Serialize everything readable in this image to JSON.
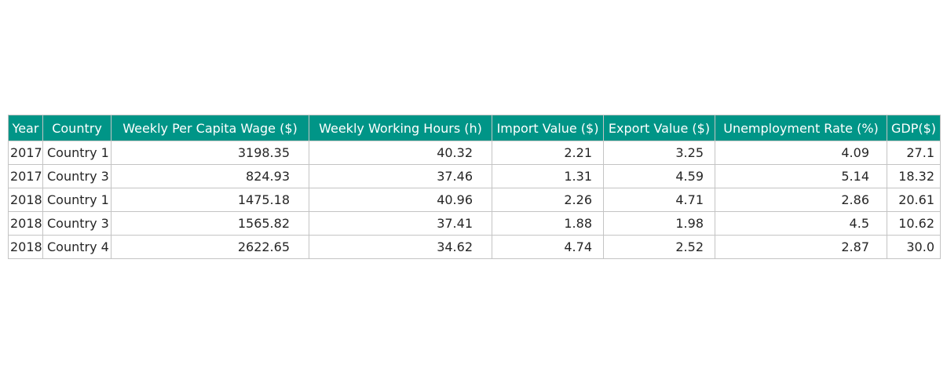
{
  "chart_data": {
    "type": "table",
    "columns": [
      "Year",
      "Country",
      "Weekly Per Capita Wage ($)",
      "Weekly Working Hours (h)",
      "Import Value ($)",
      "Export Value ($)",
      "Unemployment Rate (%)",
      "GDP($)"
    ],
    "rows": [
      [
        "2017",
        "Country 1",
        "3198.35",
        "40.32",
        "2.21",
        "3.25",
        "4.09",
        "27.1"
      ],
      [
        "2017",
        "Country 3",
        "824.93",
        "37.46",
        "1.31",
        "4.59",
        "5.14",
        "18.32"
      ],
      [
        "2018",
        "Country 1",
        "1475.18",
        "40.96",
        "2.26",
        "4.71",
        "2.86",
        "20.61"
      ],
      [
        "2018",
        "Country 3",
        "1565.82",
        "37.41",
        "1.88",
        "1.98",
        "4.5",
        "10.62"
      ],
      [
        "2018",
        "Country 4",
        "2622.65",
        "34.62",
        "4.74",
        "2.52",
        "2.87",
        "30.0"
      ]
    ],
    "header_color": "#009587",
    "header_text_color": "#ffffff",
    "border_color": "#c4c4c4"
  }
}
